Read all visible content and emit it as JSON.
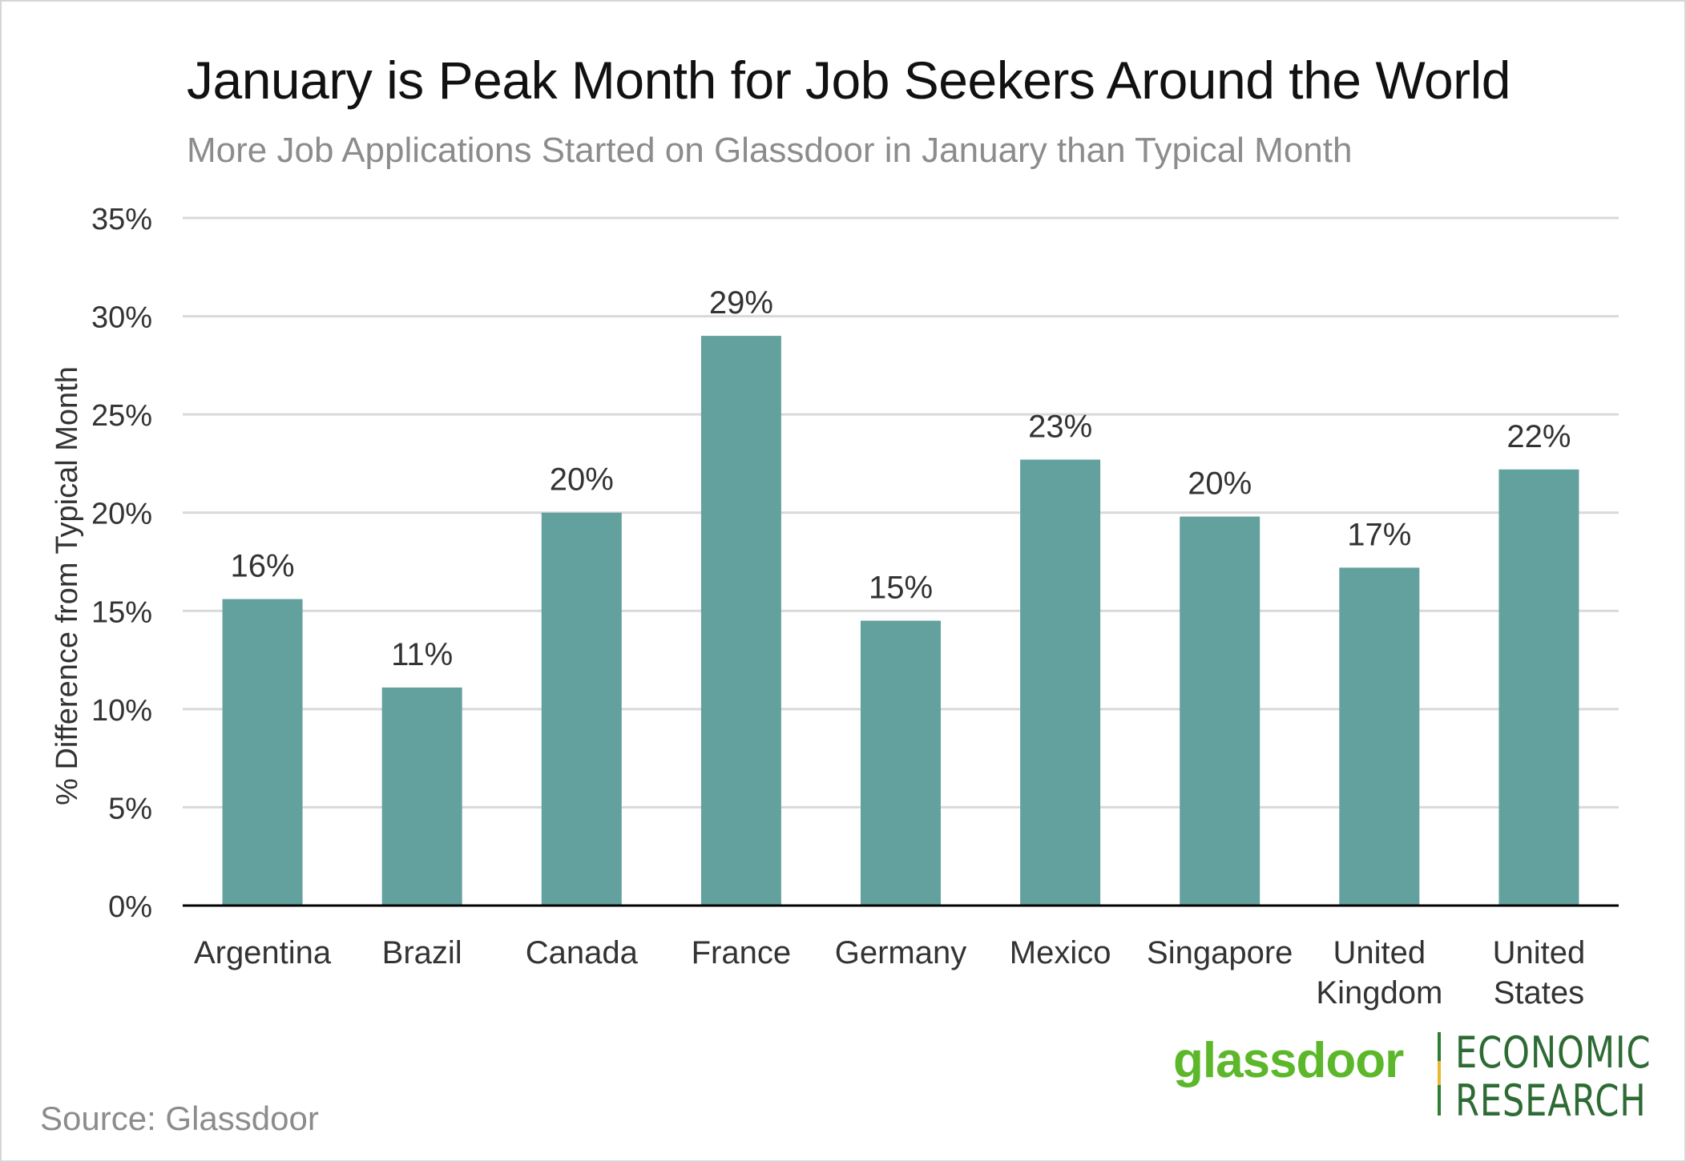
{
  "chart_data": {
    "type": "bar",
    "title": "January is Peak Month for Job Seekers  Around the World",
    "subtitle": "More  Job Applications Started on Glassdoor in January than Typical Month",
    "ylabel": "% Difference from Typical Month",
    "xlabel": "",
    "ylim": [
      0,
      35
    ],
    "yticks": [
      0,
      5,
      10,
      15,
      20,
      25,
      30,
      35
    ],
    "ytick_labels": [
      "0%",
      "5%",
      "10%",
      "15%",
      "20%",
      "25%",
      "30%",
      "35%"
    ],
    "categories": [
      [
        "Argentina"
      ],
      [
        "Brazil"
      ],
      [
        "Canada"
      ],
      [
        "France"
      ],
      [
        "Germany"
      ],
      [
        "Mexico"
      ],
      [
        "Singapore"
      ],
      [
        "United",
        "Kingdom"
      ],
      [
        "United",
        "States"
      ]
    ],
    "values": [
      15.6,
      11.1,
      20.0,
      29.0,
      14.5,
      22.7,
      19.8,
      17.2,
      22.2
    ],
    "data_labels": [
      "16%",
      "11%",
      "20%",
      "29%",
      "15%",
      "23%",
      "20%",
      "17%",
      "22%"
    ],
    "bar_color": "#62a19e",
    "grid": true,
    "legend": "none"
  },
  "source": "Source: Glassdoor",
  "logo": {
    "word": "glassdoor",
    "eco_line1": "ECONOMIC",
    "eco_line2": "RESEARCH"
  }
}
